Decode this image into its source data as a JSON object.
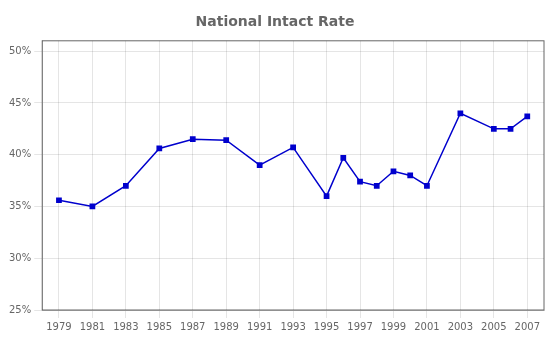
{
  "chart_data": {
    "type": "line",
    "title": "National Intact Rate",
    "x": [
      1979,
      1981,
      1983,
      1985,
      1987,
      1989,
      1991,
      1993,
      1995,
      1996,
      1997,
      1998,
      1999,
      2000,
      2001,
      2003,
      2005,
      2006,
      2007
    ],
    "values": [
      0.356,
      0.35,
      0.37,
      0.406,
      0.415,
      0.414,
      0.39,
      0.407,
      0.36,
      0.397,
      0.374,
      0.37,
      0.384,
      0.38,
      0.37,
      0.44,
      0.425,
      0.425,
      0.437
    ],
    "color": "#0000CD",
    "marker": "square",
    "xlim": [
      1978,
      2008
    ],
    "xticks": [
      1979,
      1981,
      1983,
      1985,
      1987,
      1989,
      1991,
      1993,
      1995,
      1997,
      1999,
      2001,
      2003,
      2005,
      2007
    ],
    "ylim": [
      0.25,
      0.51
    ],
    "yticks": [
      {
        "value": 0.25,
        "label": "25%"
      },
      {
        "value": 0.3,
        "label": "30%"
      },
      {
        "value": 0.35,
        "label": "35%"
      },
      {
        "value": 0.4,
        "label": "40%"
      },
      {
        "value": 0.45,
        "label": "45%"
      },
      {
        "value": 0.5,
        "label": "50%"
      }
    ],
    "grid": true
  }
}
